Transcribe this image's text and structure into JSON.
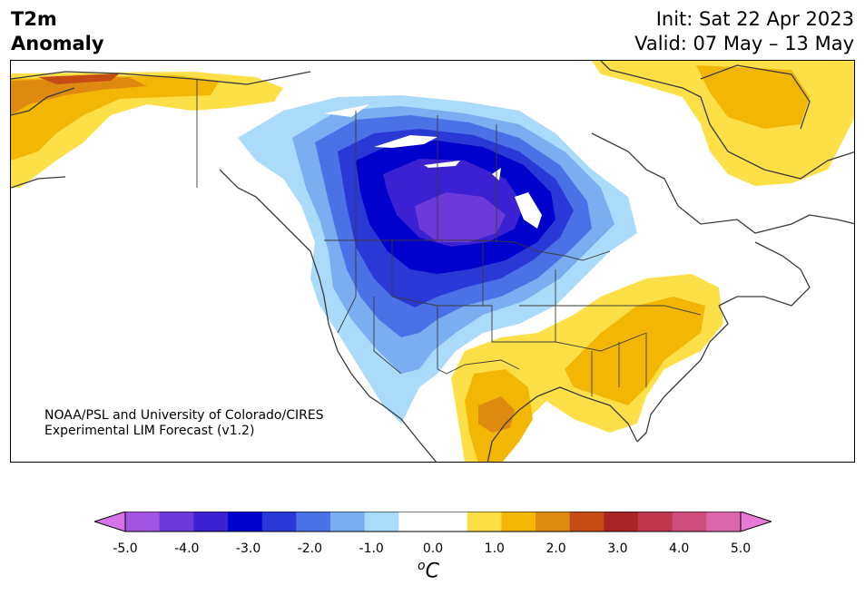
{
  "title": {
    "line1": "T2m",
    "line2": "Anomaly"
  },
  "dates": {
    "init": "Init: Sat 22 Apr 2023",
    "valid": "Valid: 07 May – 13 May"
  },
  "credit": {
    "line1": "NOAA/PSL and University of Colorado/CIRES",
    "line2": "Experimental LIM Forecast (v1.2)"
  },
  "colorbar": {
    "colors": [
      "#d673e8",
      "#a155e0",
      "#6b3ad8",
      "#3b21d1",
      "#0000cc",
      "#2939d6",
      "#4a71e6",
      "#7aaef0",
      "#aadbfb",
      "#ffffff",
      "#ffffff",
      "#fde048",
      "#f2b705",
      "#de8a10",
      "#c54d14",
      "#a92525",
      "#c0364e",
      "#d04e7d",
      "#dd66aa",
      "#e87ad6"
    ],
    "ticks": [
      "-5.0",
      "-4.0",
      "-3.0",
      "-2.0",
      "-1.0",
      "0.0",
      "1.0",
      "2.0",
      "3.0",
      "4.0",
      "5.0"
    ],
    "unit": "C",
    "unit_prefix": "o"
  }
}
